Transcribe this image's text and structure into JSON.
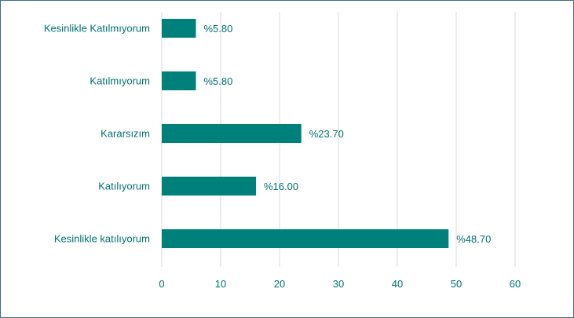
{
  "chart_data": {
    "type": "bar",
    "orientation": "horizontal",
    "categories": [
      "Kesinlikle Katılmıyorum",
      "Katılmıyorum",
      "Kararsızım",
      "Katılıyorum",
      "Kesinlikle katılıyorum"
    ],
    "values": [
      5.8,
      5.8,
      23.7,
      16.0,
      48.7
    ],
    "data_labels": [
      "%5.80",
      "%5.80",
      "%23.70",
      "%16.00",
      "%48.70"
    ],
    "x_ticks": [
      "0",
      "10",
      "20",
      "30",
      "40",
      "50",
      "60"
    ],
    "xlim": [
      0,
      60
    ],
    "grid": "vertical",
    "legend": "none",
    "colors": {
      "bar": "#00807b",
      "text": "#00716e",
      "grid": "#d9d9d9",
      "frame": "#3a6f80"
    }
  }
}
